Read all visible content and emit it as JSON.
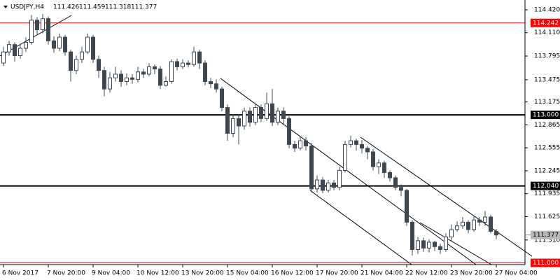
{
  "chart_data": {
    "type": "candlestick",
    "title": "USDJPY,H4",
    "categories": [
      "6 Nov 2017",
      null,
      null,
      null,
      null,
      null,
      null,
      null,
      "7 Nov 20:00",
      null,
      null,
      null,
      null,
      null,
      null,
      null,
      "9 Nov 04:00",
      null,
      null,
      null,
      null,
      null,
      null,
      null,
      "10 Nov 12:00",
      null,
      null,
      null,
      null,
      null,
      null,
      null,
      "13 Nov 20:00",
      null,
      null,
      null,
      null,
      null,
      null,
      null,
      "15 Nov 04:00",
      null,
      null,
      null,
      null,
      null,
      null,
      null,
      "16 Nov 12:00",
      null,
      null,
      null,
      null,
      null,
      null,
      null,
      "17 Nov 20:00",
      null,
      null,
      null,
      null,
      null,
      null,
      null,
      "21 Nov 04:00",
      null,
      null,
      null,
      null,
      null,
      null,
      null,
      "22 Nov 12:00",
      null,
      null,
      null,
      null,
      null,
      null,
      null,
      "23 Nov 20:00",
      null,
      null,
      null,
      null,
      null,
      null,
      null,
      "27 Nov 04:00"
    ],
    "open": [
      113.7,
      113.85,
      113.95,
      113.8,
      113.9,
      113.98,
      114.28,
      114.15,
      114.3,
      114.0,
      113.9,
      114.05,
      113.85,
      113.6,
      113.75,
      113.85,
      114.05,
      113.75,
      113.6,
      113.35,
      113.5,
      113.55,
      113.45,
      113.5,
      113.48,
      113.58,
      113.55,
      113.65,
      113.62,
      113.4,
      113.45,
      113.72,
      113.65,
      113.7,
      113.68,
      113.85,
      113.7,
      113.45,
      113.42,
      113.35,
      113.1,
      112.75,
      112.95,
      112.85,
      113.05,
      112.9,
      113.1,
      112.95,
      113.15,
      112.9,
      113.05,
      112.95,
      112.6,
      112.55,
      112.65,
      112.58,
      112.0,
      112.12,
      111.98,
      112.08,
      112.02,
      112.25,
      112.6,
      112.65,
      112.6,
      112.55,
      112.5,
      112.3,
      112.35,
      112.22,
      112.15,
      112.02,
      111.98,
      111.55,
      111.18,
      111.3,
      111.2,
      111.28,
      111.22,
      111.18,
      111.35,
      111.45,
      111.5,
      111.55,
      111.45,
      111.58,
      111.55,
      111.62,
      111.426
    ],
    "high": [
      113.92,
      114.0,
      113.98,
      113.96,
      114.05,
      114.35,
      114.32,
      114.36,
      114.33,
      114.06,
      114.1,
      114.08,
      113.88,
      113.8,
      113.92,
      114.1,
      114.08,
      113.8,
      113.65,
      113.58,
      113.65,
      113.6,
      113.56,
      113.55,
      113.65,
      113.62,
      113.7,
      113.68,
      113.66,
      113.52,
      113.75,
      113.76,
      113.75,
      113.74,
      113.92,
      113.88,
      113.74,
      113.5,
      113.48,
      113.38,
      113.14,
      113.0,
      113.0,
      113.1,
      113.1,
      113.15,
      113.14,
      113.3,
      113.35,
      113.1,
      113.1,
      112.98,
      112.65,
      112.7,
      112.7,
      112.62,
      112.18,
      112.16,
      112.12,
      112.12,
      112.3,
      112.65,
      112.72,
      112.68,
      112.66,
      112.58,
      112.54,
      112.4,
      112.38,
      112.25,
      112.18,
      112.06,
      112.0,
      111.58,
      111.35,
      111.34,
      111.32,
      111.3,
      111.26,
      111.4,
      111.52,
      111.56,
      111.62,
      111.58,
      111.64,
      111.62,
      111.7,
      111.65,
      111.459
    ],
    "low": [
      113.66,
      113.8,
      113.72,
      113.76,
      113.85,
      113.95,
      114.08,
      114.1,
      113.95,
      113.84,
      113.86,
      113.8,
      113.45,
      113.55,
      113.7,
      113.82,
      113.7,
      113.5,
      113.25,
      113.3,
      113.45,
      113.38,
      113.4,
      113.42,
      113.44,
      113.5,
      113.52,
      113.55,
      113.35,
      113.38,
      113.42,
      113.6,
      113.62,
      113.64,
      113.65,
      113.62,
      113.4,
      113.36,
      113.3,
      113.05,
      112.65,
      112.7,
      112.6,
      112.8,
      112.84,
      112.86,
      112.9,
      112.92,
      112.85,
      112.86,
      112.88,
      112.55,
      112.5,
      112.52,
      112.52,
      111.95,
      111.95,
      111.94,
      111.95,
      111.98,
      111.98,
      112.22,
      112.56,
      112.52,
      112.48,
      112.4,
      112.25,
      112.2,
      112.15,
      112.1,
      111.98,
      111.9,
      111.5,
      111.1,
      111.12,
      111.15,
      111.14,
      111.16,
      111.12,
      111.15,
      111.3,
      111.42,
      111.46,
      111.4,
      111.42,
      111.5,
      111.5,
      111.4,
      111.318
    ],
    "close": [
      113.85,
      113.95,
      113.8,
      113.9,
      113.98,
      114.28,
      114.15,
      114.3,
      114.0,
      113.9,
      114.05,
      113.85,
      113.6,
      113.75,
      113.85,
      114.05,
      113.75,
      113.6,
      113.35,
      113.5,
      113.55,
      113.45,
      113.5,
      113.48,
      113.58,
      113.55,
      113.65,
      113.62,
      113.4,
      113.45,
      113.72,
      113.65,
      113.7,
      113.68,
      113.85,
      113.7,
      113.45,
      113.42,
      113.35,
      113.1,
      112.75,
      112.95,
      112.85,
      113.05,
      112.9,
      113.1,
      112.95,
      113.15,
      112.9,
      113.05,
      112.95,
      112.6,
      112.55,
      112.65,
      112.58,
      112.0,
      112.12,
      111.98,
      112.08,
      112.02,
      112.25,
      112.6,
      112.65,
      112.6,
      112.55,
      112.5,
      112.3,
      112.35,
      112.22,
      112.15,
      112.02,
      111.98,
      111.55,
      111.18,
      111.3,
      111.2,
      111.28,
      111.22,
      111.18,
      111.35,
      111.45,
      111.5,
      111.55,
      111.45,
      111.58,
      111.55,
      111.62,
      111.426,
      111.377
    ],
    "up_color": "#ffffff",
    "down_color": "#3d4852",
    "outline_color": "#3d4852",
    "ylim": [
      110.977,
      114.552
    ],
    "yticks": [
      {
        "value": 114.42,
        "label": "114.420"
      },
      {
        "value": 114.11,
        "label": "114.110"
      },
      113.795,
      113.475,
      113.175,
      112.865,
      112.555,
      112.245,
      111.935,
      111.625,
      {
        "value": 111.31,
        "label": "111.310"
      }
    ],
    "levels": [
      {
        "value": 114.242,
        "color": "#ff0000"
      },
      {
        "value": 113,
        "label": "113.000",
        "color": "#000000"
      },
      {
        "value": 112.04,
        "label": "112.040",
        "color": "#000000"
      },
      {
        "value": 111,
        "label": "111.000",
        "color": "#ff0000"
      }
    ]
  }
}
